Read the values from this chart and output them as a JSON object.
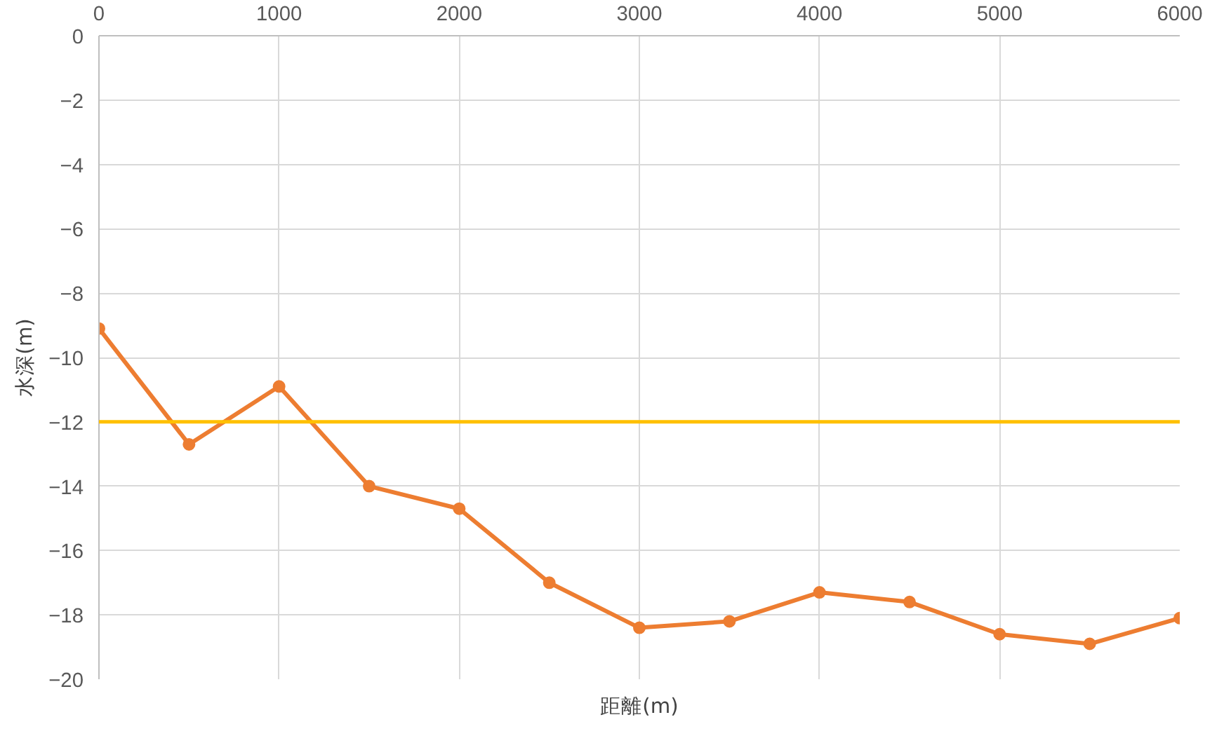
{
  "chart_data": {
    "type": "line",
    "xlabel": "距離(m)",
    "ylabel": "水深(m)",
    "x": [
      0,
      500,
      1000,
      1500,
      2000,
      2500,
      3000,
      3500,
      4000,
      4500,
      5000,
      5500,
      6000
    ],
    "series": [
      {
        "color": "#ed7d31",
        "values": [
          -9.1,
          -12.7,
          -10.9,
          -14.0,
          -14.7,
          -17.0,
          -18.4,
          -18.2,
          -17.3,
          -17.6,
          -18.6,
          -18.9,
          -18.1
        ]
      }
    ],
    "ref_lines": [
      {
        "axis": "y",
        "value": -12,
        "color": "#ffc000"
      }
    ],
    "xlim": [
      0,
      6000
    ],
    "xticks": [
      0,
      1000,
      2000,
      3000,
      4000,
      5000,
      6000
    ],
    "ylim": [
      -20,
      0
    ],
    "yticks": [
      0,
      -2,
      -4,
      -6,
      -8,
      -10,
      -12,
      -14,
      -16,
      -18,
      -20
    ],
    "grid": true,
    "marker": "circle",
    "line_style": "solid"
  }
}
